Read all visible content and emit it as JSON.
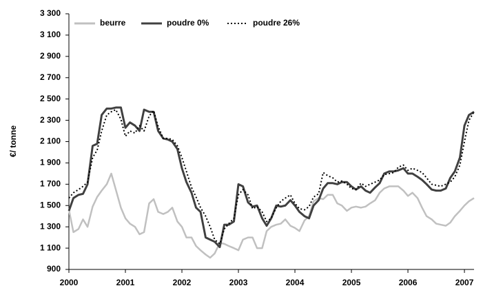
{
  "chart_data": {
    "type": "line",
    "y_label": "€/ tonne",
    "x": [
      2000,
      2000.08,
      2000.17,
      2000.25,
      2000.33,
      2000.42,
      2000.5,
      2000.58,
      2000.67,
      2000.75,
      2000.83,
      2000.92,
      2001,
      2001.08,
      2001.17,
      2001.25,
      2001.33,
      2001.42,
      2001.5,
      2001.58,
      2001.67,
      2001.75,
      2001.83,
      2001.92,
      2002,
      2002.08,
      2002.17,
      2002.25,
      2002.33,
      2002.42,
      2002.5,
      2002.58,
      2002.67,
      2002.75,
      2002.83,
      2002.92,
      2003,
      2003.08,
      2003.17,
      2003.25,
      2003.33,
      2003.42,
      2003.5,
      2003.58,
      2003.67,
      2003.75,
      2003.83,
      2003.92,
      2004,
      2004.08,
      2004.17,
      2004.25,
      2004.33,
      2004.42,
      2004.5,
      2004.58,
      2004.67,
      2004.75,
      2004.83,
      2004.92,
      2005,
      2005.08,
      2005.17,
      2005.25,
      2005.33,
      2005.42,
      2005.5,
      2005.58,
      2005.67,
      2005.75,
      2005.83,
      2005.92,
      2006,
      2006.08,
      2006.17,
      2006.25,
      2006.33,
      2006.42,
      2006.5,
      2006.58,
      2006.67,
      2006.75,
      2006.83,
      2006.92,
      2007,
      2007.08,
      2007.17
    ],
    "series": [
      {
        "name": "beurre",
        "color": "#c0c0c0",
        "line_style": "solid",
        "values": [
          1460,
          1250,
          1280,
          1370,
          1300,
          1490,
          1580,
          1640,
          1700,
          1800,
          1650,
          1480,
          1380,
          1330,
          1300,
          1230,
          1250,
          1520,
          1560,
          1440,
          1420,
          1440,
          1480,
          1350,
          1300,
          1200,
          1200,
          1120,
          1080,
          1040,
          1010,
          1050,
          1150,
          1140,
          1120,
          1100,
          1080,
          1180,
          1200,
          1200,
          1100,
          1100,
          1260,
          1300,
          1320,
          1330,
          1370,
          1310,
          1290,
          1260,
          1360,
          1400,
          1540,
          1570,
          1560,
          1600,
          1600,
          1520,
          1500,
          1450,
          1480,
          1490,
          1480,
          1490,
          1520,
          1550,
          1620,
          1660,
          1680,
          1680,
          1680,
          1640,
          1590,
          1620,
          1570,
          1480,
          1400,
          1370,
          1330,
          1320,
          1310,
          1340,
          1400,
          1450,
          1500,
          1540,
          1570
        ]
      },
      {
        "name": "poudre 0%",
        "color": "#404040",
        "line_style": "solid",
        "values": [
          1450,
          1570,
          1600,
          1610,
          1700,
          2060,
          2080,
          2350,
          2410,
          2410,
          2420,
          2420,
          2230,
          2280,
          2250,
          2200,
          2400,
          2380,
          2380,
          2200,
          2130,
          2120,
          2100,
          2030,
          1850,
          1720,
          1620,
          1480,
          1440,
          1200,
          1180,
          1160,
          1110,
          1320,
          1320,
          1350,
          1700,
          1680,
          1530,
          1490,
          1500,
          1380,
          1310,
          1380,
          1500,
          1490,
          1500,
          1550,
          1500,
          1440,
          1400,
          1380,
          1500,
          1550,
          1660,
          1710,
          1710,
          1700,
          1720,
          1720,
          1680,
          1650,
          1680,
          1640,
          1620,
          1670,
          1710,
          1800,
          1820,
          1820,
          1830,
          1850,
          1800,
          1800,
          1770,
          1740,
          1700,
          1650,
          1640,
          1640,
          1660,
          1760,
          1820,
          1950,
          2250,
          2350,
          2380
        ]
      },
      {
        "name": "poudre 26%",
        "color": "#000000",
        "line_style": "dotted",
        "values": [
          1570,
          1620,
          1650,
          1680,
          1720,
          1950,
          2020,
          2200,
          2350,
          2380,
          2400,
          2310,
          2150,
          2200,
          2180,
          2250,
          2200,
          2340,
          2390,
          2240,
          2130,
          2130,
          2120,
          2060,
          1950,
          1820,
          1670,
          1580,
          1480,
          1400,
          1300,
          1180,
          1140,
          1280,
          1330,
          1380,
          1600,
          1650,
          1600,
          1470,
          1490,
          1440,
          1350,
          1380,
          1480,
          1540,
          1570,
          1600,
          1520,
          1470,
          1460,
          1490,
          1580,
          1610,
          1810,
          1780,
          1760,
          1720,
          1730,
          1700,
          1660,
          1650,
          1710,
          1680,
          1700,
          1720,
          1740,
          1790,
          1800,
          1810,
          1860,
          1880,
          1830,
          1850,
          1830,
          1810,
          1760,
          1700,
          1690,
          1680,
          1700,
          1720,
          1770,
          1880,
          2100,
          2300,
          2380
        ]
      }
    ],
    "xlim": [
      2000,
      2007.17
    ],
    "xticks": [
      2000,
      2001,
      2002,
      2003,
      2004,
      2005,
      2006,
      2007
    ],
    "ylim": [
      900,
      3300
    ],
    "yticks": [
      900,
      {
        "value": 1100,
        "label": "1 100"
      },
      {
        "value": 1300,
        "label": "1 300"
      },
      {
        "value": 1500,
        "label": "1 500"
      },
      {
        "value": 1700,
        "label": "1 700"
      },
      {
        "value": 1900,
        "label": "1 900"
      },
      {
        "value": 2100,
        "label": "2 100"
      },
      {
        "value": 2300,
        "label": "2 300"
      },
      {
        "value": 2500,
        "label": "2 500"
      },
      {
        "value": 2700,
        "label": "2 700"
      },
      {
        "value": 2900,
        "label": "2 900"
      },
      {
        "value": 3100,
        "label": "3 100"
      },
      {
        "value": 3300,
        "label": "3 300"
      }
    ],
    "grid": false,
    "legend": "top-left"
  }
}
